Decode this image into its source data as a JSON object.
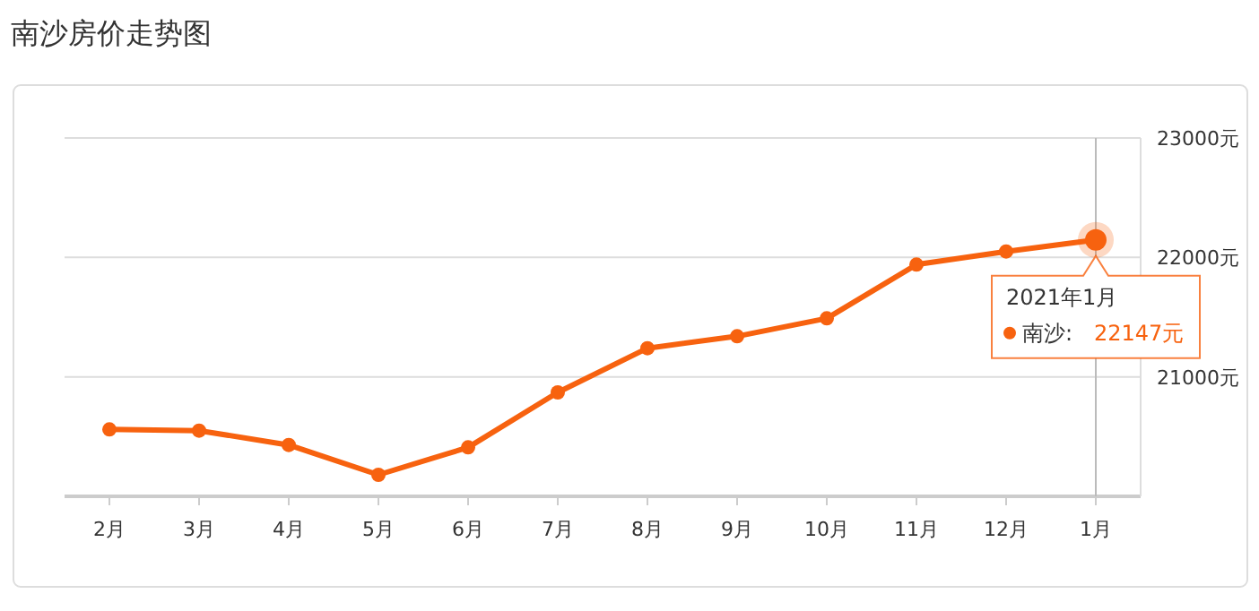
{
  "chart_data": {
    "type": "line",
    "title": "南沙房价走势图",
    "categories": [
      "2月",
      "3月",
      "4月",
      "5月",
      "6月",
      "7月",
      "8月",
      "9月",
      "10月",
      "11月",
      "12月",
      "1月"
    ],
    "series": [
      {
        "name": "南沙:",
        "color": "#f7620f",
        "values": [
          20560,
          20550,
          20430,
          20180,
          20410,
          20870,
          21240,
          21340,
          21490,
          21940,
          22050,
          22147
        ]
      }
    ],
    "ylim": [
      20000,
      23000
    ],
    "yticks": [
      {
        "value": 21000,
        "label": "21000元"
      },
      {
        "value": 22000,
        "label": "22000元"
      },
      {
        "value": 23000,
        "label": "23000元"
      }
    ],
    "grid": "y",
    "marker": "circle",
    "line_style": "solid",
    "legend": "right",
    "ref_lines": [
      {
        "axis": "x",
        "value": "1月",
        "color": "#bbbbbb"
      }
    ],
    "annotations": [
      {
        "text": "2021年1月",
        "x": "1月",
        "y": 22147
      },
      "22147元"
    ]
  }
}
